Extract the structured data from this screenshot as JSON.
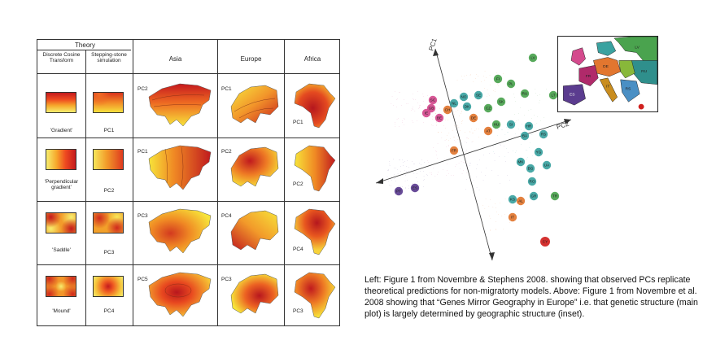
{
  "table": {
    "theory_header": "Theory",
    "col_dct": "Discrete Cosine Transform",
    "col_ss": "Stepping-stone simulation",
    "col_asia": "Asia",
    "col_europe": "Europe",
    "col_africa": "Africa",
    "rows": [
      {
        "dct_caption": "'Gradient'",
        "ss_caption": "PC1",
        "asia_pc": "PC2",
        "europe_pc": "PC1",
        "africa_pc": "PC1"
      },
      {
        "dct_caption": "'Perpendicular gradient'",
        "ss_caption": "PC2",
        "asia_pc": "PC1",
        "europe_pc": "PC2",
        "africa_pc": "PC2"
      },
      {
        "dct_caption": "'Saddle'",
        "ss_caption": "PC3",
        "asia_pc": "PC3",
        "europe_pc": "PC4",
        "africa_pc": "PC4"
      },
      {
        "dct_caption": "'Mound'",
        "ss_caption": "PC4",
        "asia_pc": "PC5",
        "europe_pc": "PC3",
        "africa_pc": "PC3"
      }
    ]
  },
  "pca": {
    "axis_pc1": "PC1",
    "axis_pc2": "PC2",
    "labels": [
      "LV",
      "FI",
      "RU",
      "PL",
      "LT",
      "NO",
      "SE",
      "DK",
      "CZ",
      "DE",
      "SK",
      "HU",
      "AT",
      "CH",
      "NL",
      "BE",
      "FR",
      "SI",
      "HR",
      "BA",
      "RS",
      "YG",
      "BG",
      "MK",
      "RO",
      "IT",
      "ES",
      "PT",
      "GB",
      "IE",
      "SC",
      "GR",
      "AL",
      "CY",
      "TR",
      "KS",
      "UA"
    ]
  },
  "colors": {
    "heat_dark": "#b5171e",
    "heat_red": "#de3a1f",
    "heat_orange": "#f08a24",
    "heat_yellow": "#f7e93a",
    "point_green": "#4aa34e",
    "point_teal": "#3aa2a0",
    "point_purple": "#5b3c8f",
    "point_pink": "#d44a8d",
    "point_orange": "#e2762f"
  },
  "caption": "Left: Figure 1 from Novembre & Stephens 2008. showing that observed PCs replicate theoretical predictions for non-migratorty models. Above: Figure 1 from Novembre et al. 2008 showing that “Genes Mirror Geography in Europe” i.e. that genetic structure (main plot) is largely determined by geographic structure (inset)."
}
